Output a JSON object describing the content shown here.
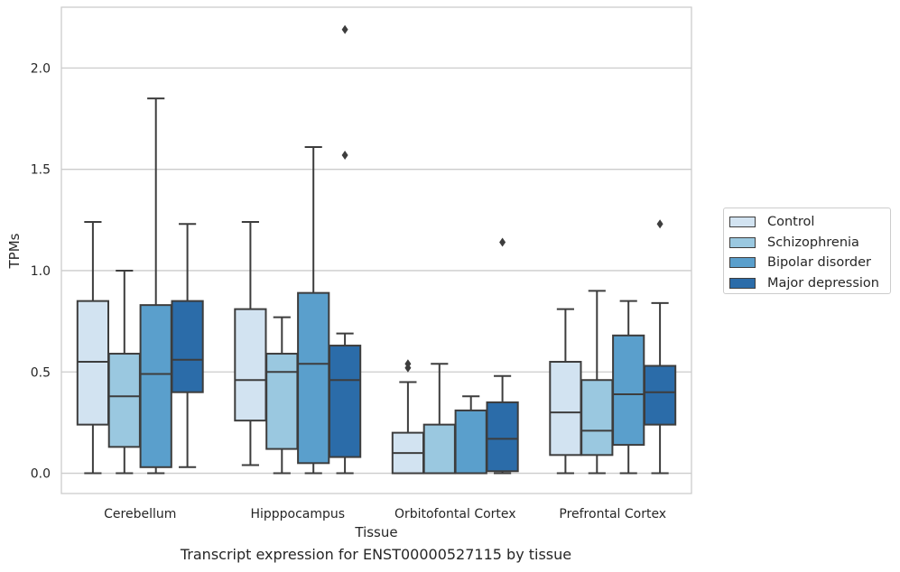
{
  "caption": "Transcript expression for ENST00000527115 by tissue",
  "chart_data": {
    "type": "box",
    "xlabel": "Tissue",
    "ylabel": "TPMs",
    "ylim": [
      -0.1,
      2.3
    ],
    "yticks": [
      "0.0",
      "0.5",
      "1.0",
      "1.5",
      "2.0"
    ],
    "grid": "horizontal",
    "legend_position": "right",
    "categories": [
      "Cerebellum",
      "Hipppocampus",
      "Orbitofontal Cortex",
      "Prefrontal Cortex"
    ],
    "series": [
      {
        "name": "Control",
        "color": "#d2e3f1",
        "boxes": [
          {
            "whislo": 0.0,
            "q1": 0.24,
            "med": 0.55,
            "q3": 0.85,
            "whishi": 1.24,
            "fliers": []
          },
          {
            "whislo": 0.04,
            "q1": 0.26,
            "med": 0.46,
            "q3": 0.81,
            "whishi": 1.24,
            "fliers": []
          },
          {
            "whislo": 0.0,
            "q1": 0.0,
            "med": 0.1,
            "q3": 0.2,
            "whishi": 0.45,
            "fliers": [
              0.52,
              0.54
            ]
          },
          {
            "whislo": 0.0,
            "q1": 0.09,
            "med": 0.3,
            "q3": 0.55,
            "whishi": 0.81,
            "fliers": []
          }
        ]
      },
      {
        "name": "Schizophrenia",
        "color": "#9ac8e0",
        "boxes": [
          {
            "whislo": 0.0,
            "q1": 0.13,
            "med": 0.38,
            "q3": 0.59,
            "whishi": 1.0,
            "fliers": []
          },
          {
            "whislo": 0.0,
            "q1": 0.12,
            "med": 0.5,
            "q3": 0.59,
            "whishi": 0.77,
            "fliers": []
          },
          {
            "whislo": 0.0,
            "q1": 0.0,
            "med": 0.0,
            "q3": 0.24,
            "whishi": 0.54,
            "fliers": []
          },
          {
            "whislo": 0.0,
            "q1": 0.09,
            "med": 0.21,
            "q3": 0.46,
            "whishi": 0.9,
            "fliers": []
          }
        ]
      },
      {
        "name": "Bipolar disorder",
        "color": "#5a9fcc",
        "boxes": [
          {
            "whislo": 0.0,
            "q1": 0.03,
            "med": 0.49,
            "q3": 0.83,
            "whishi": 1.85,
            "fliers": []
          },
          {
            "whislo": 0.0,
            "q1": 0.05,
            "med": 0.54,
            "q3": 0.89,
            "whishi": 1.61,
            "fliers": []
          },
          {
            "whislo": 0.0,
            "q1": 0.0,
            "med": 0.0,
            "q3": 0.31,
            "whishi": 0.38,
            "fliers": []
          },
          {
            "whislo": 0.0,
            "q1": 0.14,
            "med": 0.39,
            "q3": 0.68,
            "whishi": 0.85,
            "fliers": []
          }
        ]
      },
      {
        "name": "Major depression",
        "color": "#2b6ca9",
        "boxes": [
          {
            "whislo": 0.03,
            "q1": 0.4,
            "med": 0.56,
            "q3": 0.85,
            "whishi": 1.23,
            "fliers": []
          },
          {
            "whislo": 0.0,
            "q1": 0.08,
            "med": 0.46,
            "q3": 0.63,
            "whishi": 0.69,
            "fliers": [
              1.57,
              2.19
            ]
          },
          {
            "whislo": 0.0,
            "q1": 0.01,
            "med": 0.17,
            "q3": 0.35,
            "whishi": 0.48,
            "fliers": [
              1.14
            ]
          },
          {
            "whislo": 0.0,
            "q1": 0.24,
            "med": 0.4,
            "q3": 0.53,
            "whishi": 0.84,
            "fliers": [
              1.23
            ]
          }
        ]
      }
    ]
  }
}
